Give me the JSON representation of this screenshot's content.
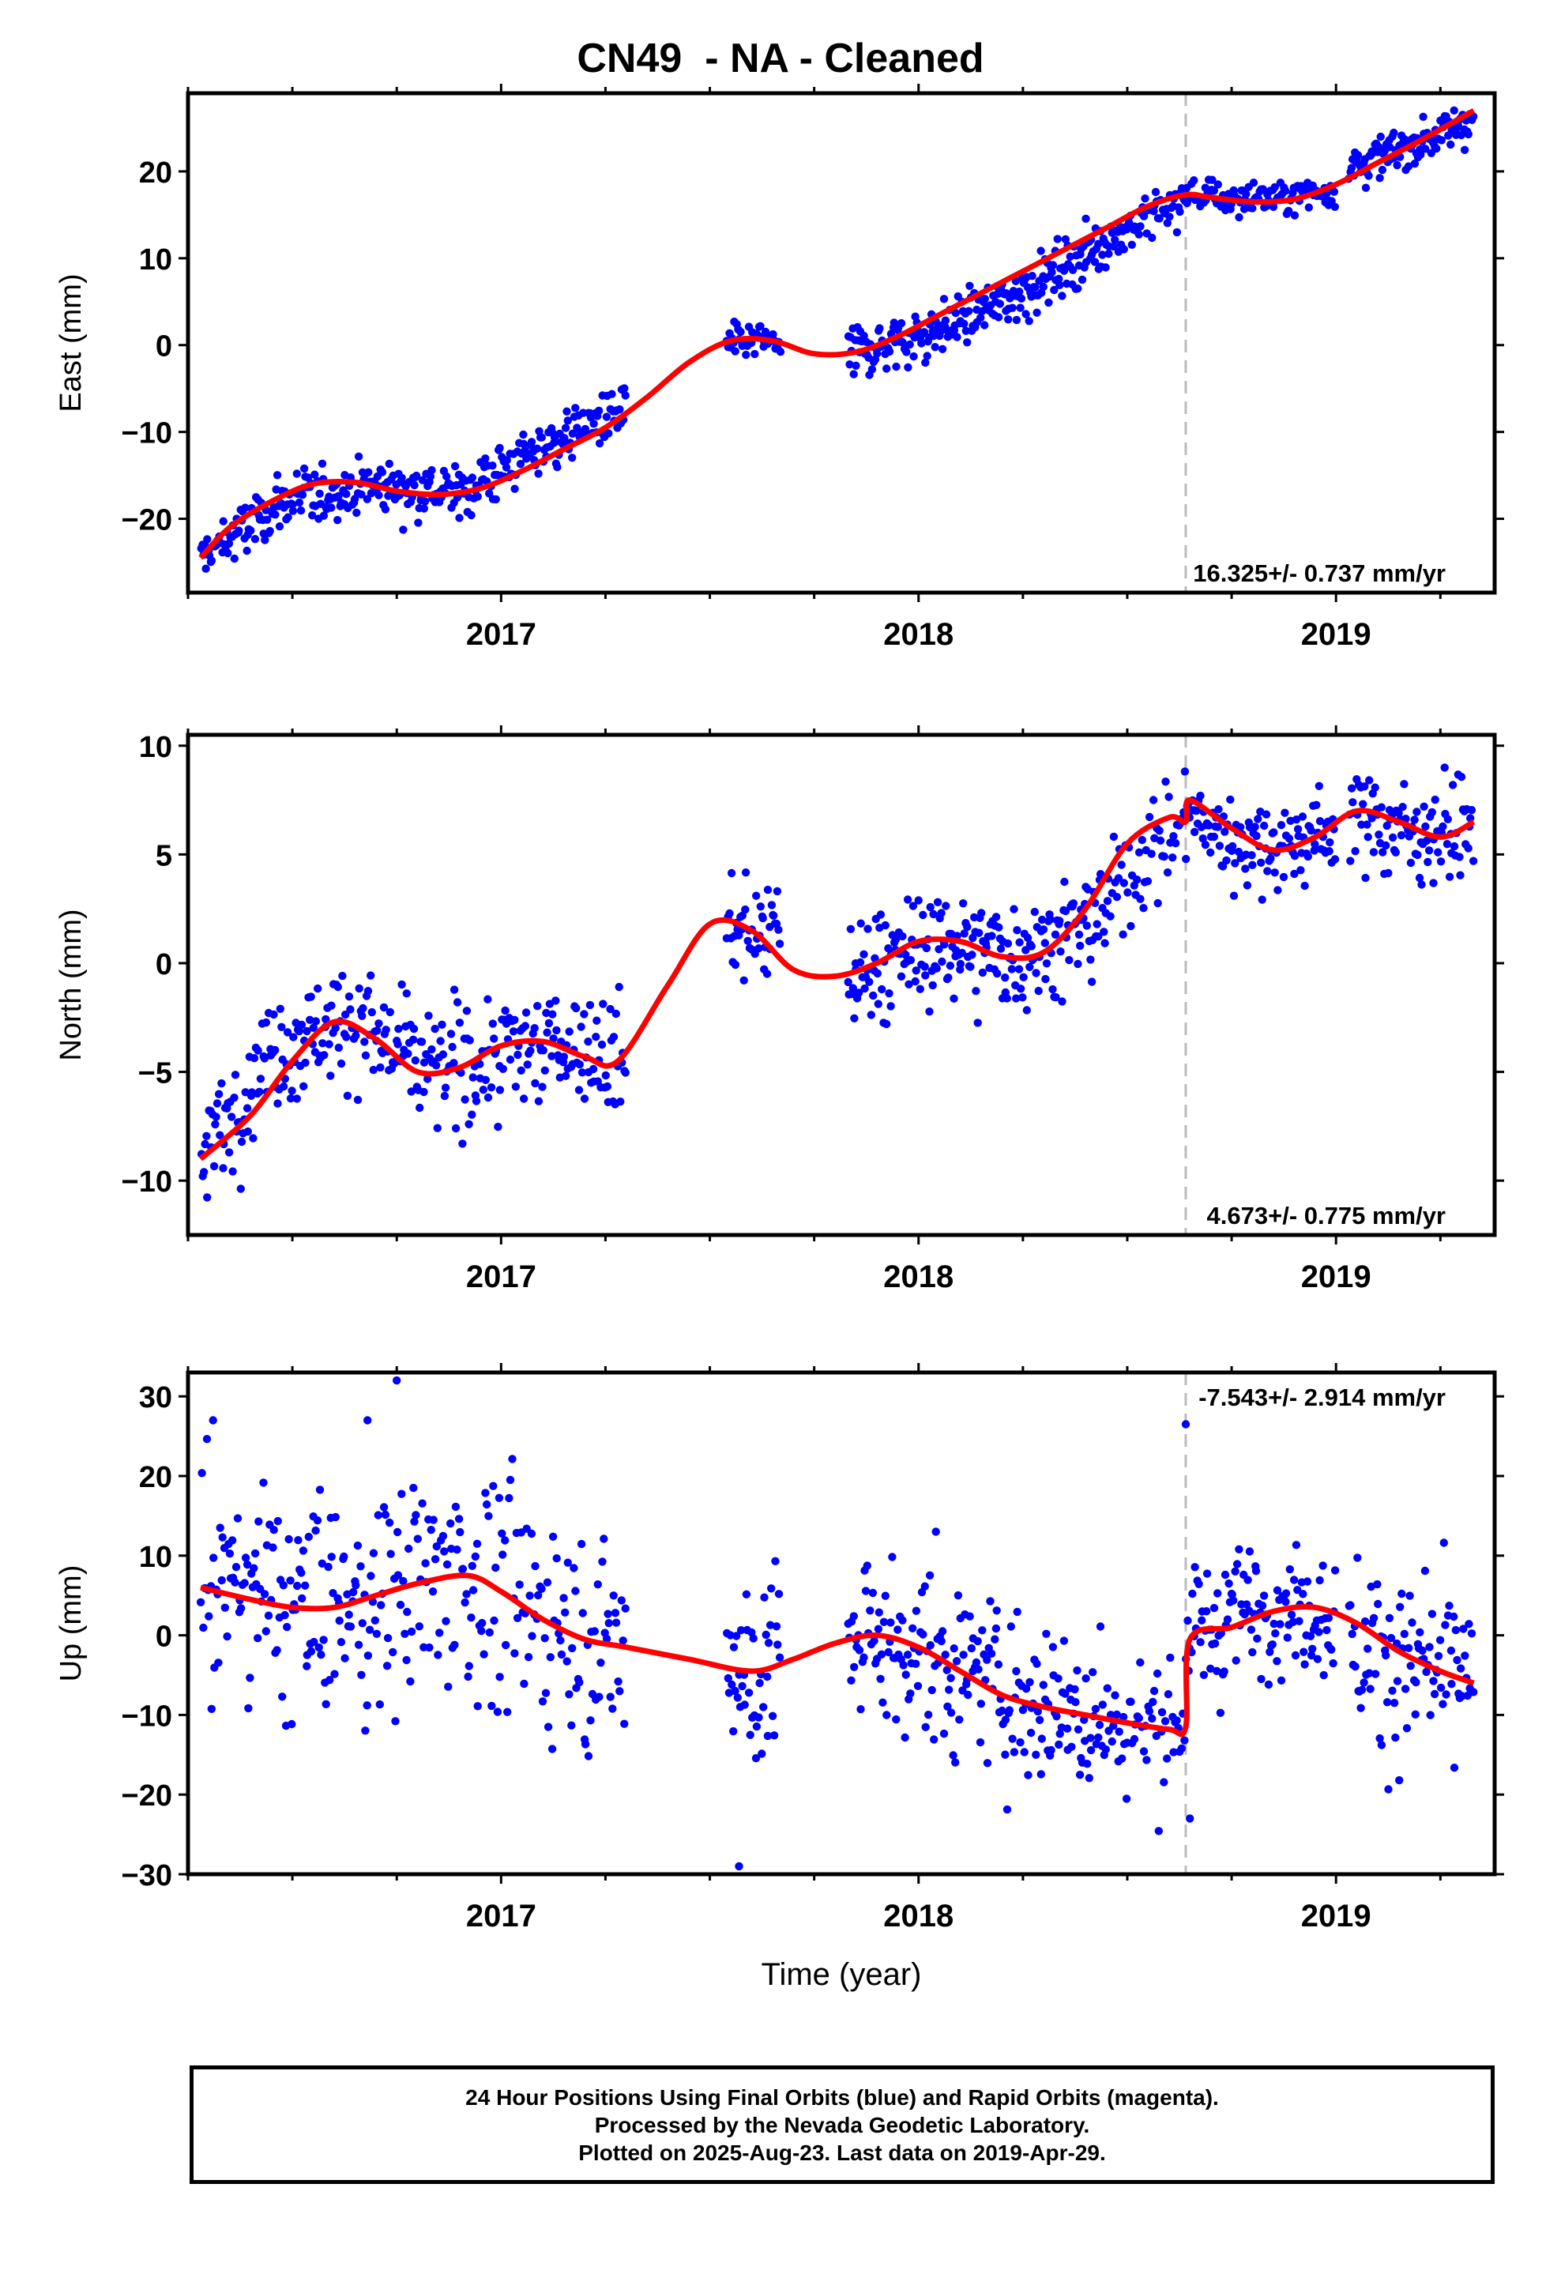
{
  "title": "CN49  - NA - Cleaned",
  "footer": {
    "line1": "24 Hour Positions Using Final Orbits (blue) and Rapid Orbits (magenta).",
    "line2": "Processed by the Nevada Geodetic Laboratory.",
    "line3": "Plotted on 2025-Aug-23. Last data on 2019-Apr-29."
  },
  "colors": {
    "final_orbits": "#0000ff",
    "model": "#ff0000",
    "offset_line": "#bbbbbb"
  },
  "chart_data": [
    {
      "type": "scatter",
      "ylabel": "East (mm)",
      "xlabel": "",
      "rate_label": "16.325+/- 0.737 mm/yr",
      "xlim": [
        2016.25,
        2019.38
      ],
      "ylim": [
        -28.5,
        29
      ],
      "yticks": [
        20,
        10,
        0,
        -10,
        -20
      ],
      "xticks": [
        2017,
        2018,
        2019
      ],
      "offset_epoch": 2018.64,
      "series": [
        {
          "kind": "model-curve",
          "x": [
            2016.28,
            2016.35,
            2016.45,
            2016.55,
            2016.65,
            2016.75,
            2016.85,
            2016.95,
            2017.05,
            2017.15,
            2017.25,
            2017.35,
            2017.45,
            2017.55,
            2017.65,
            2017.75,
            2017.85,
            2017.95,
            2018.05,
            2018.15,
            2018.25,
            2018.35,
            2018.45,
            2018.55,
            2018.64,
            2018.7,
            2018.8,
            2018.9,
            2019.0,
            2019.1,
            2019.2,
            2019.33
          ],
          "y": [
            -24.5,
            -21.0,
            -18.0,
            -16.0,
            -15.8,
            -16.8,
            -17.2,
            -16.5,
            -14.5,
            -12.0,
            -9.5,
            -6.0,
            -2.0,
            0.5,
            0.5,
            -1.0,
            -0.8,
            1.0,
            3.5,
            6.0,
            8.5,
            11.0,
            13.5,
            16.0,
            17.3,
            17.0,
            16.5,
            16.8,
            18.5,
            21.0,
            23.5,
            27.0
          ]
        },
        {
          "kind": "observations",
          "segments": [
            {
              "x0": 2016.28,
              "x1": 2016.9,
              "n": 210,
              "trend": [
                -24.5,
                -18.0,
                -16.0,
                -17.0
              ],
              "scatter": 1.6
            },
            {
              "x0": 2016.9,
              "x1": 2017.3,
              "n": 130,
              "trend": [
                -17.0,
                -13.5,
                -10.0,
                -7.5
              ],
              "scatter": 1.7
            },
            {
              "x0": 2017.54,
              "x1": 2017.67,
              "n": 45,
              "trend": [
                0.3,
                0.5,
                0.4
              ],
              "scatter": 1.0
            },
            {
              "x0": 2017.83,
              "x1": 2018.45,
              "n": 230,
              "trend": [
                -1.0,
                1.5,
                6.0,
                12.0
              ],
              "scatter": 1.5
            },
            {
              "x0": 2018.45,
              "x1": 2018.64,
              "n": 60,
              "trend": [
                12.0,
                14.5,
                16.5
              ],
              "scatter": 1.3
            },
            {
              "x0": 2018.64,
              "x1": 2019.0,
              "n": 120,
              "trend": [
                17.5,
                16.8,
                17.0,
                18.0
              ],
              "scatter": 1.0
            },
            {
              "x0": 2019.03,
              "x1": 2019.33,
              "n": 110,
              "trend": [
                20.5,
                23.0,
                26.0
              ],
              "scatter": 1.2
            }
          ]
        }
      ]
    },
    {
      "type": "scatter",
      "ylabel": "North (mm)",
      "xlabel": "",
      "rate_label": "4.673+/- 0.775 mm/yr",
      "xlim": [
        2016.25,
        2019.38
      ],
      "ylim": [
        -12.5,
        10.5
      ],
      "yticks": [
        10,
        5,
        0,
        -5,
        -10
      ],
      "xticks": [
        2017,
        2018,
        2019
      ],
      "offset_epoch": 2018.64,
      "series": [
        {
          "kind": "model-curve",
          "x": [
            2016.28,
            2016.4,
            2016.5,
            2016.6,
            2016.7,
            2016.8,
            2016.9,
            2017.0,
            2017.1,
            2017.2,
            2017.28,
            2017.4,
            2017.5,
            2017.6,
            2017.7,
            2017.8,
            2017.9,
            2018.0,
            2018.1,
            2018.2,
            2018.3,
            2018.4,
            2018.5,
            2018.6,
            2018.64,
            2018.65,
            2018.75,
            2018.85,
            2018.95,
            2019.05,
            2019.15,
            2019.25,
            2019.33
          ],
          "y": [
            -9.0,
            -7.0,
            -4.5,
            -2.7,
            -3.5,
            -5.0,
            -4.8,
            -3.8,
            -3.6,
            -4.3,
            -4.5,
            -1.0,
            1.8,
            1.5,
            -0.3,
            -0.6,
            0.0,
            1.0,
            1.0,
            0.3,
            0.5,
            2.5,
            5.5,
            6.7,
            6.5,
            7.5,
            6.2,
            5.2,
            5.8,
            7.0,
            6.5,
            5.8,
            6.5
          ]
        },
        {
          "kind": "observations",
          "segments": [
            {
              "x0": 2016.28,
              "x1": 2016.8,
              "n": 170,
              "trend": [
                -9.0,
                -4.0,
                -2.5,
                -4.5
              ],
              "scatter": 1.3
            },
            {
              "x0": 2016.8,
              "x1": 2017.3,
              "n": 160,
              "trend": [
                -5.0,
                -4.5,
                -3.5,
                -4.5
              ],
              "scatter": 1.4
            },
            {
              "x0": 2017.54,
              "x1": 2017.67,
              "n": 45,
              "trend": [
                1.5,
                1.5,
                1.0
              ],
              "scatter": 1.2
            },
            {
              "x0": 2017.83,
              "x1": 2018.45,
              "n": 220,
              "trend": [
                -0.5,
                0.8,
                0.5,
                2.0
              ],
              "scatter": 1.3
            },
            {
              "x0": 2018.45,
              "x1": 2018.64,
              "n": 50,
              "trend": [
                3.0,
                5.0,
                6.5
              ],
              "scatter": 1.2
            },
            {
              "x0": 2018.64,
              "x1": 2019.0,
              "n": 120,
              "trend": [
                7.0,
                5.5,
                5.5,
                6.0
              ],
              "scatter": 1.0
            },
            {
              "x0": 2019.03,
              "x1": 2019.33,
              "n": 100,
              "trend": [
                7.0,
                6.0,
                6.2
              ],
              "scatter": 1.1
            }
          ]
        }
      ]
    },
    {
      "type": "scatter",
      "ylabel": "Up (mm)",
      "xlabel": "Time (year)",
      "rate_label": "-7.543+/- 2.914 mm/yr",
      "xlim": [
        2016.25,
        2019.38
      ],
      "ylim": [
        -30,
        33
      ],
      "yticks": [
        30,
        20,
        10,
        0,
        -10,
        -20,
        -30
      ],
      "xticks": [
        2017,
        2018,
        2019
      ],
      "offset_epoch": 2018.64,
      "series": [
        {
          "kind": "model-curve",
          "x": [
            2016.28,
            2016.4,
            2016.5,
            2016.6,
            2016.7,
            2016.8,
            2016.92,
            2017.0,
            2017.1,
            2017.2,
            2017.3,
            2017.45,
            2017.6,
            2017.7,
            2017.8,
            2017.9,
            2018.0,
            2018.1,
            2018.2,
            2018.3,
            2018.4,
            2018.5,
            2018.6,
            2018.64,
            2018.65,
            2018.75,
            2018.85,
            2018.95,
            2019.05,
            2019.15,
            2019.25,
            2019.33
          ],
          "y": [
            6.0,
            4.5,
            3.5,
            3.5,
            5.0,
            6.5,
            7.5,
            5.5,
            2.0,
            -0.5,
            -1.5,
            -3.0,
            -4.5,
            -3.0,
            -1.0,
            0.0,
            -1.5,
            -4.5,
            -7.5,
            -9.0,
            -10.0,
            -11.0,
            -11.8,
            -11.5,
            -0.5,
            1.0,
            3.0,
            3.5,
            1.5,
            -2.0,
            -4.5,
            -6.0
          ]
        },
        {
          "kind": "observations",
          "segments": [
            {
              "x0": 2016.28,
              "x1": 2016.7,
              "n": 130,
              "trend": [
                8.0,
                4.0,
                3.0
              ],
              "scatter": 7.0
            },
            {
              "x0": 2016.7,
              "x1": 2017.3,
              "n": 170,
              "trend": [
                5.0,
                8.0,
                2.0,
                -1.5
              ],
              "scatter": 7.0
            },
            {
              "x0": 2017.54,
              "x1": 2017.67,
              "n": 45,
              "trend": [
                -4.0,
                -5.0,
                -4.0
              ],
              "scatter": 6.5
            },
            {
              "x0": 2017.83,
              "x1": 2018.45,
              "n": 200,
              "trend": [
                0.0,
                -2.5,
                -8.0,
                -10.0
              ],
              "scatter": 5.5
            },
            {
              "x0": 2018.45,
              "x1": 2018.64,
              "n": 50,
              "trend": [
                -10.5,
                -11.5,
                -11.5
              ],
              "scatter": 4.5
            },
            {
              "x0": 2018.64,
              "x1": 2019.0,
              "n": 120,
              "trend": [
                0.0,
                3.0,
                4.0,
                2.5
              ],
              "scatter": 4.0
            },
            {
              "x0": 2019.03,
              "x1": 2019.33,
              "n": 95,
              "trend": [
                -1.0,
                -4.5,
                -6.5
              ],
              "scatter": 6.0
            }
          ]
        },
        {
          "kind": "outliers",
          "x": [
            2016.31,
            2016.68,
            2016.75,
            2017.57,
            2018.64,
            2018.65
          ],
          "y": [
            27.0,
            27.0,
            32.0,
            -29.0,
            26.5,
            -23.0
          ]
        }
      ]
    }
  ]
}
